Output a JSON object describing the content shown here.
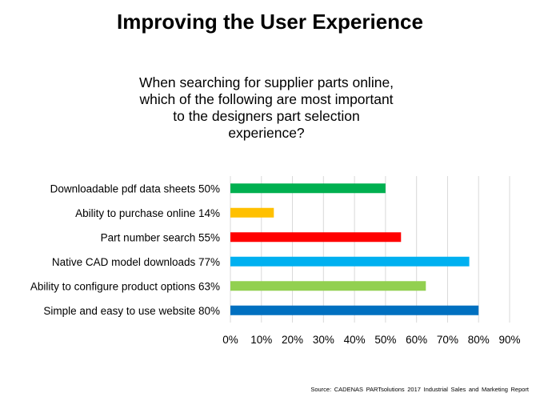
{
  "slide": {
    "title": "Improving the User Experience",
    "subtitle_lines": [
      "When searching for supplier parts online,",
      "which of the following are most important",
      "to the designers part selection",
      "experience?"
    ],
    "source": "Source:  CADENAS PARTsolutions 2017 Industrial Sales and Marketing Report"
  },
  "chart_data": {
    "type": "bar",
    "orientation": "horizontal",
    "title": "When searching for supplier parts online, which of the following are most important to the designers part selection experience?",
    "categories": [
      "Downloadable pdf data sheets 50%",
      "Ability to purchase online 14%",
      "Part number search 55%",
      "Native CAD model downloads 77%",
      "Ability to configure product options 63%",
      "Simple and easy to use website 80%"
    ],
    "values": [
      50,
      14,
      55,
      77,
      63,
      80
    ],
    "colors": [
      "#00b050",
      "#ffc000",
      "#ff0000",
      "#00b0f0",
      "#92d050",
      "#0070c0"
    ],
    "xlim": [
      0,
      90
    ],
    "x_ticks": [
      "0%",
      "10%",
      "20%",
      "30%",
      "40%",
      "50%",
      "60%",
      "70%",
      "80%",
      "90%"
    ],
    "x_tick_values": [
      0,
      10,
      20,
      30,
      40,
      50,
      60,
      70,
      80,
      90
    ],
    "grid": "vertical",
    "grid_color": "#d9d9d9",
    "legend": "none"
  }
}
